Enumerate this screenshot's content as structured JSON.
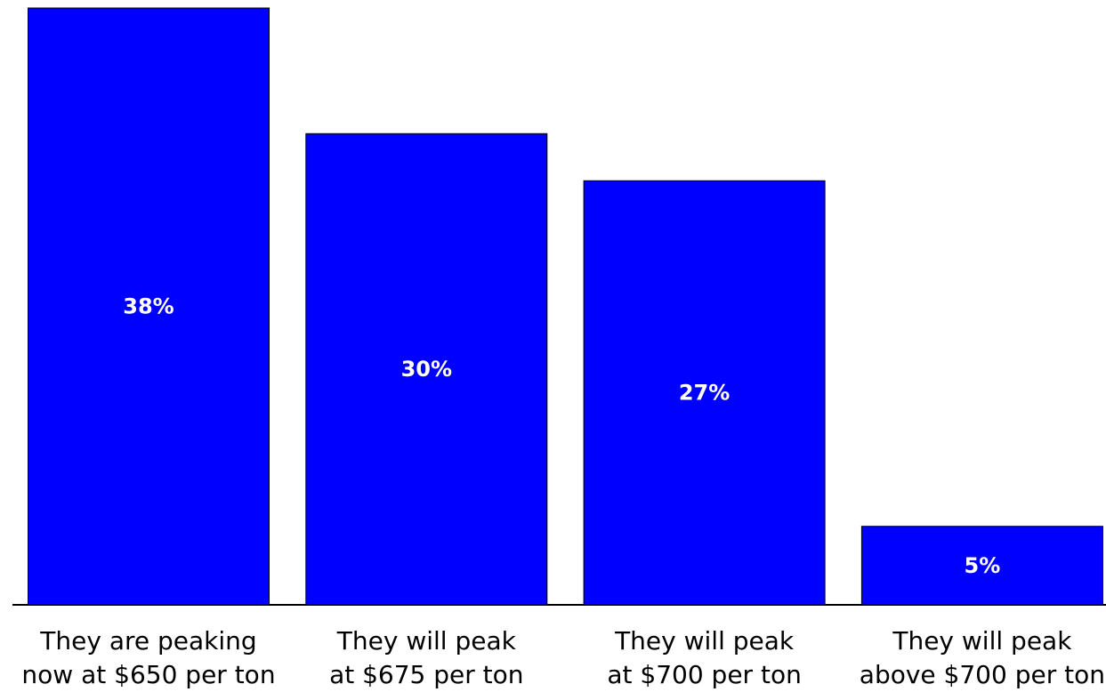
{
  "chart_data": {
    "type": "bar",
    "categories": [
      [
        "They are peaking",
        "now at $650 per ton"
      ],
      [
        "They will peak",
        "at $675 per ton"
      ],
      [
        "They will peak",
        "at $700 per ton"
      ],
      [
        "They will peak",
        "above $700 per ton"
      ]
    ],
    "values": [
      38,
      30,
      27,
      5
    ],
    "value_labels": [
      "38%",
      "30%",
      "27%",
      "5%"
    ],
    "ylim": [
      0,
      38
    ],
    "grid": false,
    "legend": "none",
    "colors": {
      "bar": "#0000ff",
      "bar_label": "#ffffff",
      "axis": "#000000",
      "background": "#ffffff"
    }
  }
}
